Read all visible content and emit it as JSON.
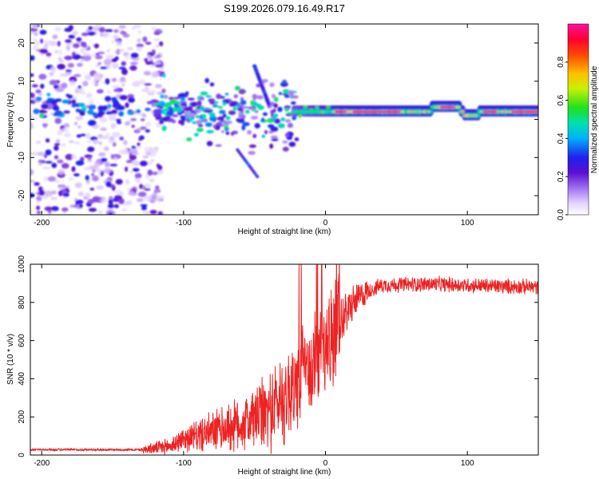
{
  "title": "S199.2026.079.16.49.R17",
  "chart_data": [
    {
      "type": "heatmap",
      "name": "spectrogram",
      "xlabel": "Height of straight line (km)",
      "ylabel": "Frequency (Hz)",
      "xlim": [
        -208,
        150
      ],
      "ylim": [
        -25,
        25
      ],
      "xticks": [
        -200,
        -100,
        0,
        100
      ],
      "yticks": [
        -20,
        -10,
        0,
        10,
        20
      ],
      "colorbar": {
        "label": "Normalized spectral amplitude",
        "range": [
          0.0,
          1.0
        ],
        "ticks": [
          0.0,
          0.2,
          0.4,
          0.6,
          0.8
        ],
        "tick_labels": [
          "0.0",
          "0.2",
          "0.4",
          "0.6",
          "0.8"
        ],
        "colormap": "rainbow (white-lavender-purple-blue-cyan-green-yellow-orange-red-magenta)"
      },
      "features": [
        {
          "name": "noise region",
          "x_range": [
            -208,
            -115
          ],
          "freq_range": [
            -25,
            25
          ],
          "amplitude": [
            0.05,
            0.3
          ]
        },
        {
          "name": "scattered bursts",
          "x_range": [
            -115,
            -20
          ],
          "freq_range": [
            -16,
            14
          ],
          "amplitude": [
            0.1,
            0.5
          ]
        },
        {
          "name": "coherent carrier",
          "x_range": [
            -20,
            150
          ],
          "center_freq_hz": 2,
          "amplitude": [
            0.6,
            1.0
          ]
        }
      ]
    },
    {
      "type": "line",
      "name": "snr",
      "xlabel": "Height of straight line (km)",
      "ylabel": "SNR (10 * v/v)",
      "xlim": [
        -208,
        150
      ],
      "ylim": [
        0,
        1000
      ],
      "xticks": [
        -200,
        -100,
        0,
        100
      ],
      "yticks": [
        0,
        200,
        400,
        600,
        800,
        1000
      ],
      "color": "#ee2222",
      "profile_x": [
        -208,
        -130,
        -110,
        -100,
        -80,
        -60,
        -40,
        -25,
        -15,
        -5,
        0,
        5,
        10,
        20,
        30,
        40,
        60,
        80,
        100,
        120,
        150
      ],
      "profile_y": [
        28,
        28,
        45,
        85,
        120,
        160,
        230,
        330,
        440,
        520,
        560,
        610,
        700,
        800,
        860,
        890,
        895,
        895,
        890,
        885,
        880
      ]
    }
  ]
}
